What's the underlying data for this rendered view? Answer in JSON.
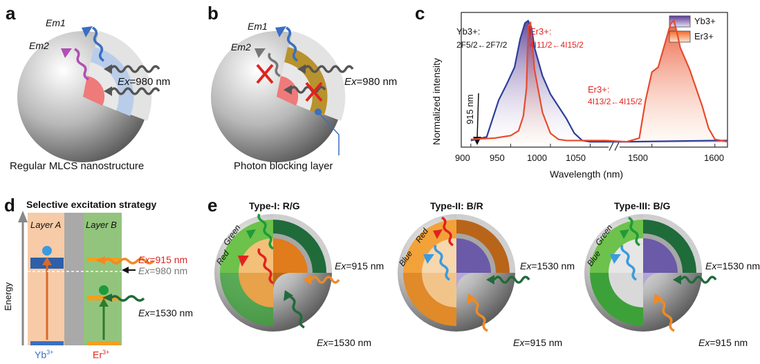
{
  "panels": {
    "a": "a",
    "b": "b",
    "c": "c",
    "d": "d",
    "e": "e"
  },
  "panel_a": {
    "em1": "Em1",
    "em2": "Em2",
    "ex": "Ex",
    "ex_val": "=980 nm",
    "caption": "Regular MLCS nanostructure"
  },
  "panel_b": {
    "em1": "Em1",
    "em2": "Em2",
    "ex": "Ex",
    "ex_val": "=980 nm",
    "caption": "Photon blocking layer"
  },
  "panel_c": {
    "ylabel": "Normalized intensity",
    "xlabel": "Wavelength (nm)",
    "legend_yb": "Yb3+",
    "legend_er": "Er3+",
    "ann_yb_ion": "Yb3+:",
    "ann_yb_trans": "2F5/2←2F7/2",
    "ann_er1_ion": "Er3+:",
    "ann_er1_trans": "4I11/2←4I15/2",
    "ann_er2_ion": "Er3+:",
    "ann_er2_trans": "4I13/2←4I15/2",
    "ann_915": "915 nm",
    "ticks": [
      "900",
      "950",
      "1000",
      "1050",
      "1500",
      "1600"
    ]
  },
  "chart_data": {
    "type": "area",
    "title": "",
    "xlabel": "Wavelength (nm)",
    "ylabel": "Normalized intensity",
    "axis_break": [
      1080,
      1440
    ],
    "ylim": [
      0,
      1
    ],
    "series": [
      {
        "name": "Yb3+",
        "color": "#2a3f9a",
        "x": [
          900,
          920,
          935,
          945,
          955,
          962,
          968,
          972,
          976,
          980,
          990,
          1000,
          1010,
          1020,
          1030,
          1040,
          1050,
          1070,
          1460,
          1600,
          1620
        ],
        "y": [
          0.02,
          0.05,
          0.35,
          0.48,
          0.62,
          0.85,
          0.98,
          1.0,
          0.95,
          0.78,
          0.55,
          0.4,
          0.3,
          0.2,
          0.08,
          0.02,
          0.01,
          0.01,
          0.01,
          0.02,
          0.02
        ]
      },
      {
        "name": "Er3+",
        "color": "#e84a2e",
        "x": [
          900,
          930,
          950,
          960,
          966,
          970,
          972,
          975,
          980,
          990,
          1000,
          1010,
          1020,
          1070,
          1460,
          1480,
          1490,
          1500,
          1510,
          1520,
          1530,
          1535,
          1540,
          1545,
          1550,
          1560,
          1570,
          1580,
          1590,
          1600,
          1620
        ],
        "y": [
          0.03,
          0.04,
          0.06,
          0.1,
          0.22,
          0.45,
          0.95,
          0.98,
          0.6,
          0.25,
          0.08,
          0.03,
          0.02,
          0.02,
          0.01,
          0.04,
          0.35,
          0.58,
          0.62,
          0.8,
          0.98,
          1.0,
          0.9,
          0.78,
          0.72,
          0.6,
          0.45,
          0.3,
          0.12,
          0.03,
          0.01
        ]
      }
    ]
  },
  "panel_d": {
    "title": "Selective excitation strategy",
    "layer_a": "Layer A",
    "layer_b": "Layer B",
    "energy": "Energy",
    "ex915": "Ex",
    "ex915_val": "=915 nm",
    "ex980": "Ex",
    "ex980_val": "=980 nm",
    "ex1530": "Ex",
    "ex1530_val": "=1530 nm",
    "yb": "Yb",
    "yb_sup": "3+",
    "er": "Er",
    "er_sup": "3+"
  },
  "panel_e": {
    "t1_title": "Type-I: R/G",
    "t2_title": "Type-II: B/R",
    "t3_title": "Type-III: B/G",
    "t1_em_a": "Green",
    "t1_em_b": "Red",
    "t2_em_a": "Red",
    "t2_em_b": "Blue",
    "t3_em_a": "Green",
    "t3_em_b": "Blue",
    "ex": "Ex",
    "t1_ex_top": "=915 nm",
    "t1_ex_bot": "=1530 nm",
    "t2_ex_top": "=1530 nm",
    "t2_ex_bot": "=915 nm",
    "t3_ex_top": "=1530 nm",
    "t3_ex_bot": "=915 nm"
  },
  "colors": {
    "yb": "#3a6fc2",
    "er": "#e0231f",
    "green": "#1f6b3a",
    "orange": "#f08a24"
  }
}
